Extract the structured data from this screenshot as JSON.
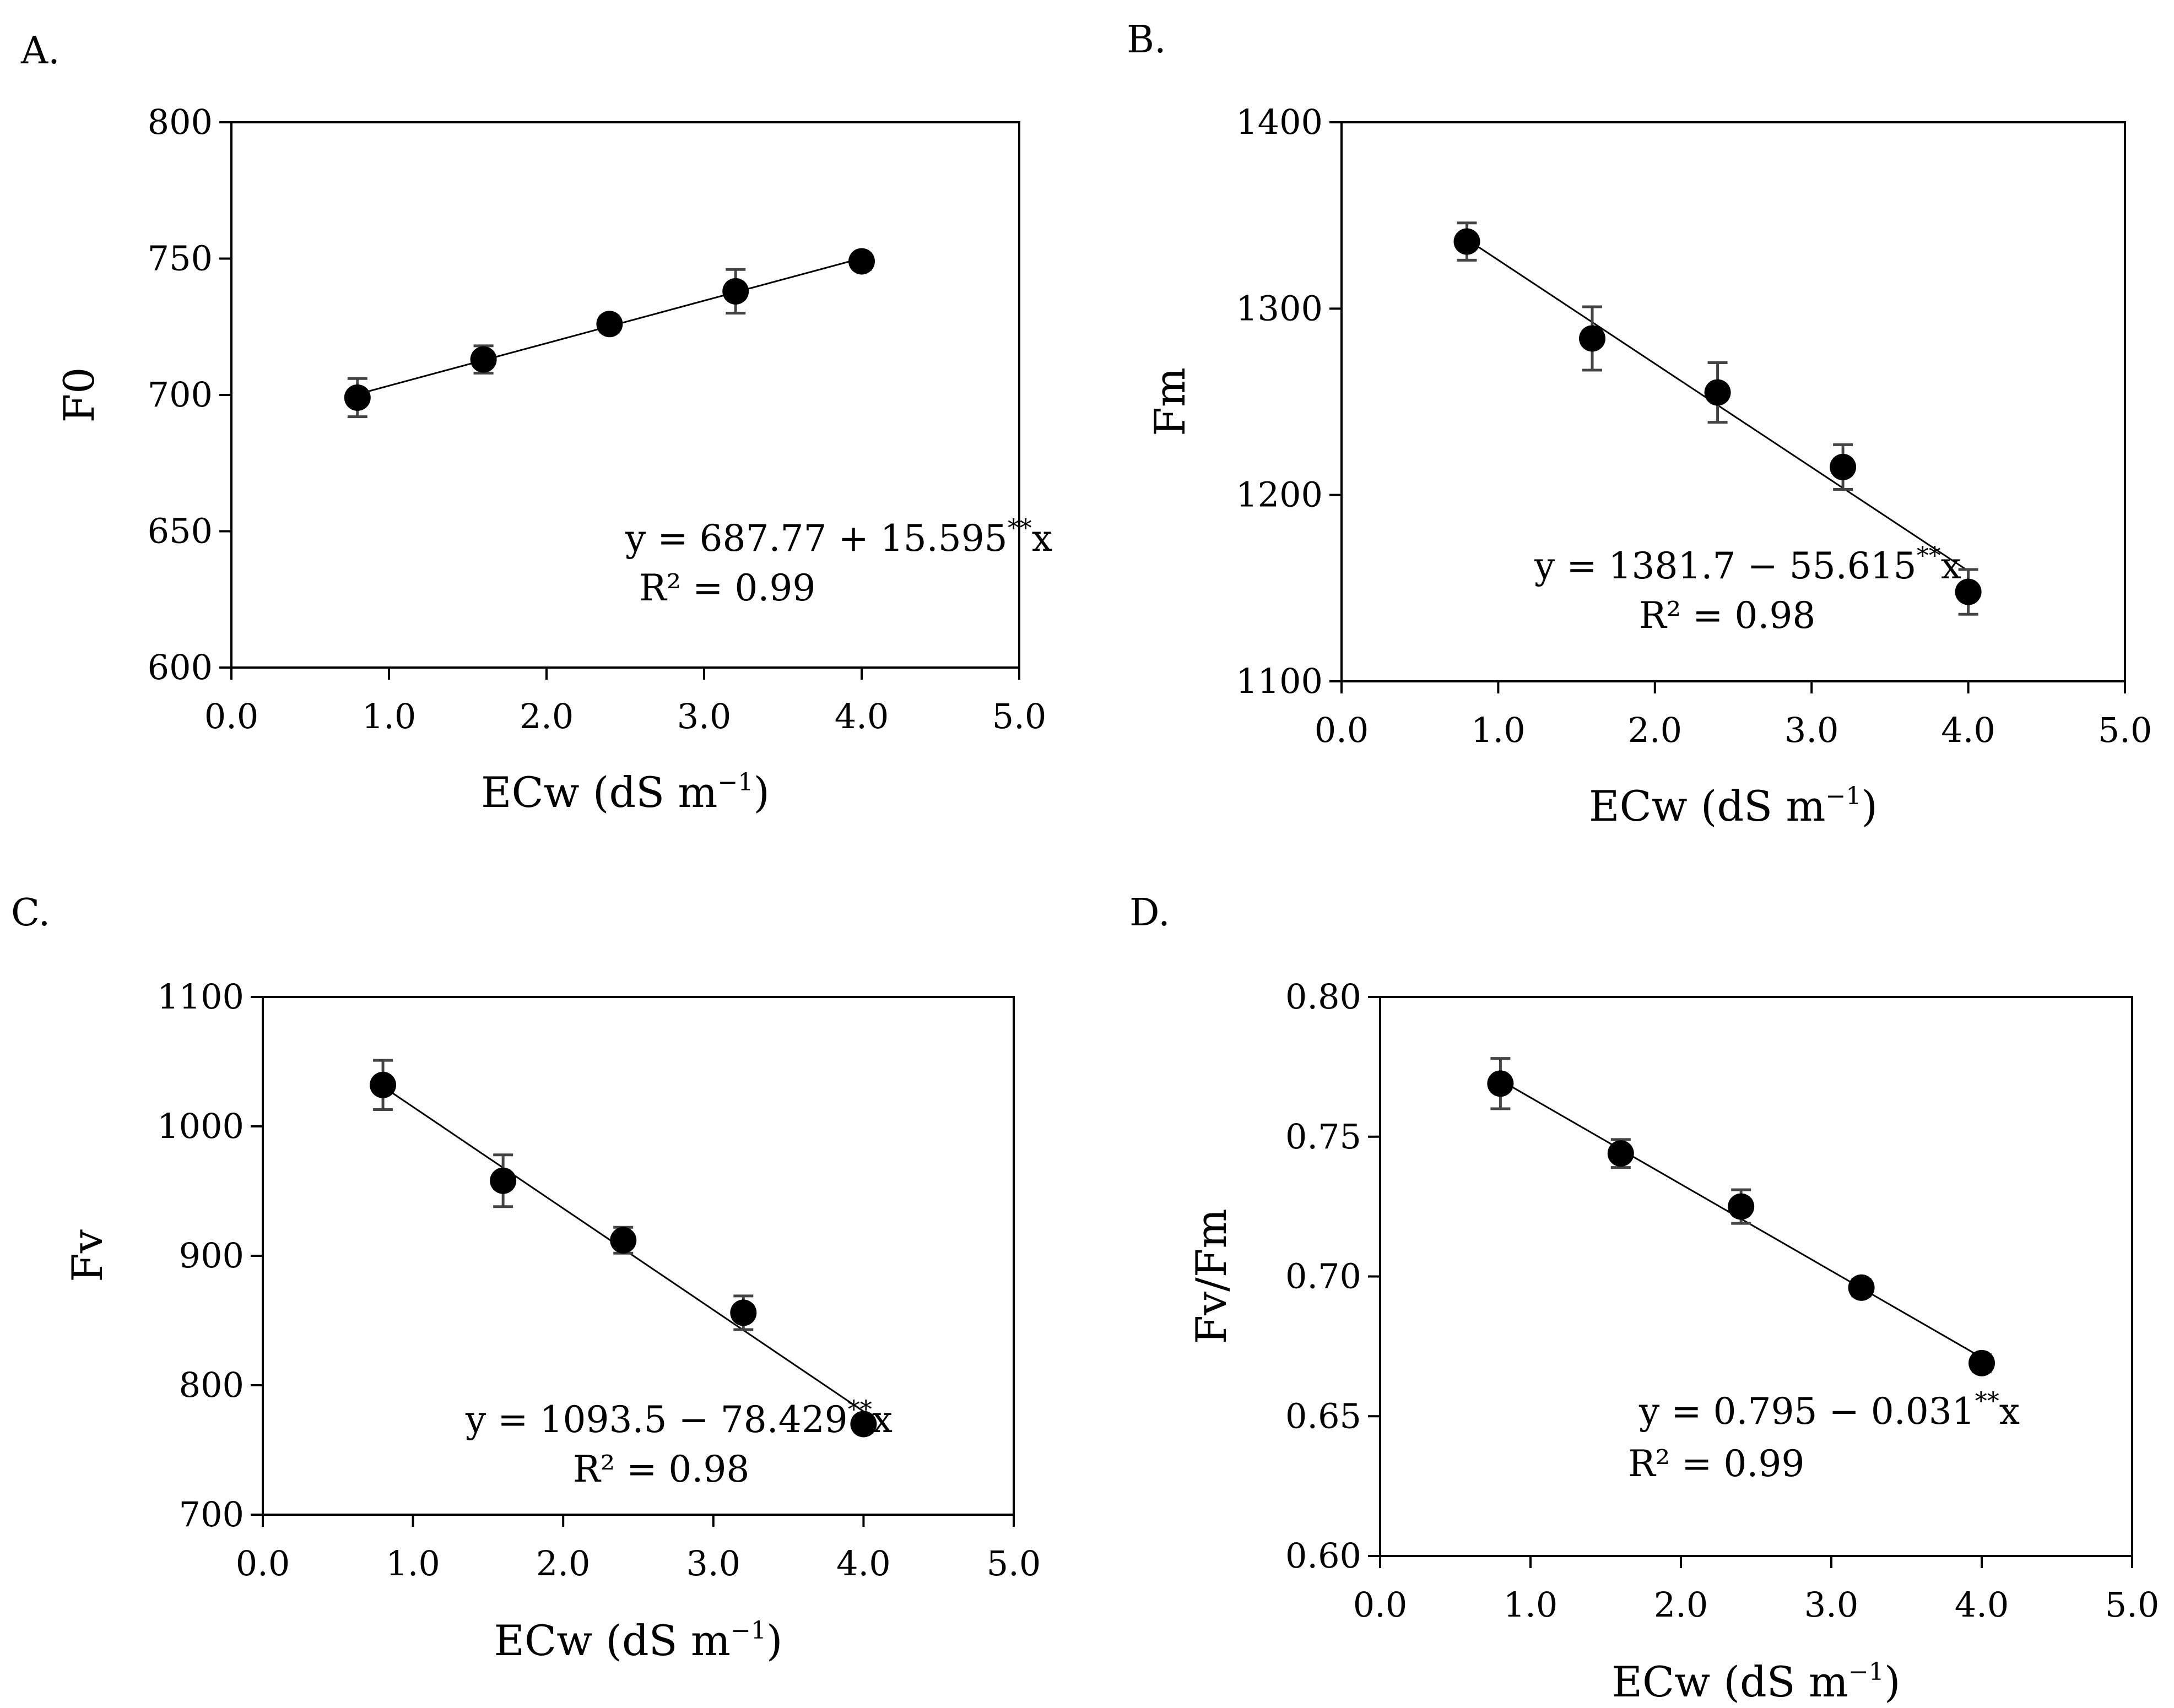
{
  "chart_data": [
    {
      "type": "scatter",
      "panel_label": "A.",
      "ylabel": "F0",
      "xlabel": "ECw (dS m",
      "xlabel_sup": "−1",
      "xlabel_end": ")",
      "xlim": [
        0,
        5
      ],
      "ylim": [
        600,
        800
      ],
      "xticks": [
        0,
        1,
        2,
        3,
        4,
        5
      ],
      "xtick_labels": [
        "0.0",
        "1.0",
        "2.0",
        "3.0",
        "4.0",
        "5.0"
      ],
      "yticks": [
        600,
        650,
        700,
        750,
        800
      ],
      "ytick_labels": [
        "600",
        "650",
        "700",
        "750",
        "800"
      ],
      "x": [
        0.8,
        1.6,
        2.4,
        3.2,
        4.0
      ],
      "y": [
        699,
        713,
        726,
        738,
        749
      ],
      "err": [
        7,
        5,
        3,
        8,
        3
      ],
      "fit": {
        "intercept": 687.77,
        "slope": 15.595
      },
      "equation": "y = 687.77 + 15.595**x",
      "r2": "R² = 0.99",
      "annotation_position": "bottom-center"
    },
    {
      "type": "scatter",
      "panel_label": "B.",
      "ylabel": "Fm",
      "xlabel": "ECw (dS m",
      "xlabel_sup": "−1",
      "xlabel_end": ")",
      "xlim": [
        0,
        5
      ],
      "ylim": [
        1100,
        1400
      ],
      "xticks": [
        0,
        1,
        2,
        3,
        4,
        5
      ],
      "xtick_labels": [
        "0.0",
        "1.0",
        "2.0",
        "3.0",
        "4.0",
        "5.0"
      ],
      "yticks": [
        1100,
        1200,
        1300,
        1400
      ],
      "ytick_labels": [
        "1100",
        "1200",
        "1300",
        "1400"
      ],
      "x": [
        0.8,
        1.6,
        2.4,
        3.2,
        4.0
      ],
      "y": [
        1336,
        1284,
        1255,
        1215,
        1148
      ],
      "err": [
        10,
        17,
        16,
        12,
        12
      ],
      "fit": {
        "intercept": 1381.7,
        "slope": -55.615
      },
      "equation": "y = 1381.7 − 55.615**x",
      "r2": "R² = 0.98",
      "annotation_position": "bottom-left"
    },
    {
      "type": "scatter",
      "panel_label": "C.",
      "ylabel": "Fv",
      "xlabel": "ECw (dS m",
      "xlabel_sup": "−1",
      "xlabel_end": ")",
      "xlim": [
        0,
        5
      ],
      "ylim": [
        700,
        1100
      ],
      "xticks": [
        0,
        1,
        2,
        3,
        4,
        5
      ],
      "xtick_labels": [
        "0.0",
        "1.0",
        "2.0",
        "3.0",
        "4.0",
        "5.0"
      ],
      "yticks": [
        700,
        800,
        900,
        1000,
        1100
      ],
      "ytick_labels": [
        "700",
        "800",
        "900",
        "1000",
        "1100"
      ],
      "x": [
        0.8,
        1.6,
        2.4,
        3.2,
        4.0
      ],
      "y": [
        1032,
        958,
        912,
        856,
        770
      ],
      "err": [
        19,
        20,
        10,
        13,
        6
      ],
      "fit": {
        "intercept": 1093.5,
        "slope": -78.429
      },
      "equation": "y = 1093.5 − 78.429**x",
      "r2": "R² = 0.98",
      "annotation_position": "bottom-left"
    },
    {
      "type": "scatter",
      "panel_label": "D.",
      "ylabel": "Fv/Fm",
      "xlabel": "ECw (dS m",
      "xlabel_sup": "−1",
      "xlabel_end": ")",
      "xlim": [
        0,
        5
      ],
      "ylim": [
        0.6,
        0.8
      ],
      "xticks": [
        0,
        1,
        2,
        3,
        4,
        5
      ],
      "xtick_labels": [
        "0.0",
        "1.0",
        "2.0",
        "3.0",
        "4.0",
        "5.0"
      ],
      "yticks": [
        0.6,
        0.65,
        0.7,
        0.75,
        0.8
      ],
      "ytick_labels": [
        "0.60",
        "0.65",
        "0.70",
        "0.75",
        "0.80"
      ],
      "x": [
        0.8,
        1.6,
        2.4,
        3.2,
        4.0
      ],
      "y": [
        0.769,
        0.744,
        0.725,
        0.696,
        0.669
      ],
      "err": [
        0.009,
        0.005,
        0.006,
        0.003,
        0.003
      ],
      "fit": {
        "intercept": 0.795,
        "slope": -0.031
      },
      "equation": "y = 0.795 − 0.031**x",
      "r2": "R² = 0.99",
      "annotation_position": "bottom-left"
    }
  ]
}
